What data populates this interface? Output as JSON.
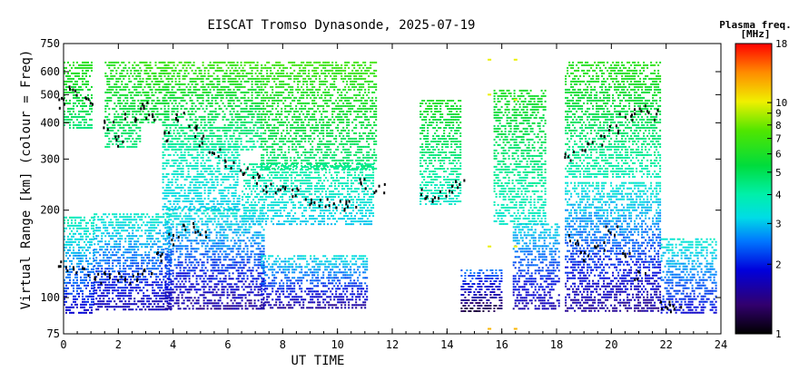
{
  "chart_data": {
    "type": "heatmap",
    "title": "EISCAT Tromso Dynasonde, 2025-07-19",
    "xlabel": "UT TIME",
    "ylabel": "Virtual Range [km] (colour = Freq)",
    "xlim": [
      0,
      24
    ],
    "x_ticks": [
      "0",
      "2",
      "4",
      "6",
      "8",
      "10",
      "12",
      "14",
      "16",
      "18",
      "20",
      "22",
      "24"
    ],
    "ylim": [
      75,
      750
    ],
    "y_scale": "log",
    "y_ticks": [
      {
        "value": 75,
        "label": "75"
      },
      {
        "value": 100,
        "label": "100"
      },
      {
        "value": 200,
        "label": "200"
      },
      {
        "value": 300,
        "label": "300"
      },
      {
        "value": 400,
        "label": "400"
      },
      {
        "value": 500,
        "label": "500"
      },
      {
        "value": 600,
        "label": "600"
      },
      {
        "value": 750,
        "label": "750"
      }
    ],
    "colorbar": {
      "title_line1": "Plasma freq.",
      "title_line2": "[MHz]",
      "range": [
        1,
        18
      ],
      "scale": "log",
      "ticks": [
        "1",
        "2",
        "3",
        "4",
        "5",
        "6",
        "7",
        "8",
        "9",
        "10",
        "18"
      ]
    },
    "regions": [
      {
        "t0": 0.0,
        "t1": 1.1,
        "r0": 88,
        "r1": 190,
        "f0": 1.8,
        "f1": 3.8
      },
      {
        "t0": 0.0,
        "t1": 1.0,
        "r0": 380,
        "r1": 650,
        "f0": 4.5,
        "f1": 6.5
      },
      {
        "t0": 1.1,
        "t1": 3.9,
        "r0": 90,
        "r1": 195,
        "f0": 1.6,
        "f1": 3.6
      },
      {
        "t0": 1.5,
        "t1": 2.8,
        "r0": 330,
        "r1": 650,
        "f0": 4.5,
        "f1": 6.5
      },
      {
        "t0": 2.8,
        "t1": 3.8,
        "r0": 400,
        "r1": 650,
        "f0": 5.0,
        "f1": 7.0
      },
      {
        "t0": 3.7,
        "t1": 7.3,
        "r0": 92,
        "r1": 205,
        "f0": 1.5,
        "f1": 3.5
      },
      {
        "t0": 3.6,
        "t1": 6.4,
        "r0": 200,
        "r1": 340,
        "f0": 3.0,
        "f1": 4.0
      },
      {
        "t0": 3.6,
        "t1": 7.2,
        "r0": 320,
        "r1": 650,
        "f0": 4.0,
        "f1": 7.0
      },
      {
        "t0": 7.2,
        "t1": 11.1,
        "r0": 92,
        "r1": 140,
        "f0": 1.5,
        "f1": 3.3
      },
      {
        "t0": 6.5,
        "t1": 11.3,
        "r0": 180,
        "r1": 290,
        "f0": 3.0,
        "f1": 4.2
      },
      {
        "t0": 7.2,
        "t1": 11.4,
        "r0": 280,
        "r1": 650,
        "f0": 4.5,
        "f1": 7.0
      },
      {
        "t0": 13.0,
        "t1": 14.5,
        "r0": 210,
        "r1": 480,
        "f0": 3.5,
        "f1": 6.0
      },
      {
        "t0": 14.5,
        "t1": 16.0,
        "r0": 90,
        "r1": 125,
        "f0": 1.2,
        "f1": 2.5
      },
      {
        "t0": 15.7,
        "t1": 17.6,
        "r0": 180,
        "r1": 520,
        "f0": 3.5,
        "f1": 6.0
      },
      {
        "t0": 16.4,
        "t1": 18.1,
        "r0": 92,
        "r1": 180,
        "f0": 1.6,
        "f1": 3.2
      },
      {
        "t0": 18.3,
        "t1": 21.8,
        "r0": 90,
        "r1": 250,
        "f0": 1.5,
        "f1": 3.5
      },
      {
        "t0": 18.3,
        "t1": 21.8,
        "r0": 260,
        "r1": 650,
        "f0": 3.8,
        "f1": 6.5
      },
      {
        "t0": 21.8,
        "t1": 23.8,
        "r0": 88,
        "r1": 160,
        "f0": 1.8,
        "f1": 3.5
      }
    ],
    "trace": [
      [
        0.0,
        130
      ],
      [
        0.5,
        125
      ],
      [
        1.0,
        120
      ],
      [
        1.5,
        118
      ],
      [
        2.0,
        120
      ],
      [
        2.5,
        118
      ],
      [
        3.0,
        125
      ],
      [
        3.5,
        140
      ],
      [
        4.0,
        160
      ],
      [
        4.5,
        175
      ],
      [
        5.0,
        165
      ],
      [
        0.0,
        470
      ],
      [
        0.4,
        520
      ],
      [
        0.8,
        480
      ],
      [
        1.6,
        400
      ],
      [
        2.0,
        350
      ],
      [
        2.4,
        420
      ],
      [
        2.8,
        460
      ],
      [
        3.2,
        420
      ],
      [
        3.6,
        360
      ],
      [
        4.2,
        420
      ],
      [
        4.6,
        380
      ],
      [
        5.0,
        350
      ],
      [
        5.5,
        320
      ],
      [
        6.0,
        290
      ],
      [
        6.5,
        270
      ],
      [
        7.0,
        260
      ],
      [
        7.5,
        240
      ],
      [
        8.0,
        240
      ],
      [
        8.5,
        230
      ],
      [
        9.0,
        215
      ],
      [
        9.5,
        215
      ],
      [
        10.0,
        210
      ],
      [
        10.5,
        215
      ],
      [
        11.0,
        250
      ],
      [
        11.5,
        240
      ],
      [
        13.2,
        230
      ],
      [
        13.6,
        225
      ],
      [
        14.0,
        235
      ],
      [
        14.4,
        245
      ],
      [
        18.5,
        310
      ],
      [
        19.0,
        330
      ],
      [
        19.5,
        350
      ],
      [
        20.0,
        380
      ],
      [
        20.5,
        420
      ],
      [
        21.0,
        450
      ],
      [
        21.5,
        430
      ],
      [
        18.6,
        160
      ],
      [
        19.0,
        140
      ],
      [
        19.5,
        150
      ],
      [
        20.0,
        170
      ],
      [
        20.5,
        140
      ],
      [
        21.0,
        120
      ],
      [
        22.0,
        95
      ],
      [
        22.3,
        92
      ]
    ],
    "high_freq_echoes": [
      {
        "t": 15.55,
        "r": 660,
        "f": 10
      },
      {
        "t": 15.55,
        "r": 500,
        "f": 10
      },
      {
        "t": 15.55,
        "r": 150,
        "f": 10
      },
      {
        "t": 15.55,
        "r": 78,
        "f": 12
      },
      {
        "t": 16.5,
        "r": 660,
        "f": 10
      },
      {
        "t": 16.5,
        "r": 480,
        "f": 10
      },
      {
        "t": 16.5,
        "r": 150,
        "f": 10
      },
      {
        "t": 16.5,
        "r": 78,
        "f": 12
      }
    ]
  }
}
